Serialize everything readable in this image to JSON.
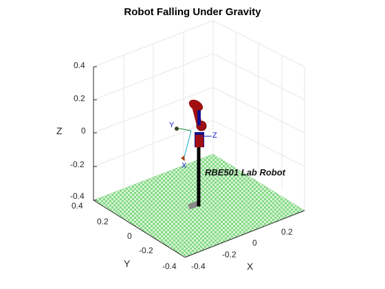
{
  "figure": {
    "title": "Robot Falling Under Gravity",
    "robot_label": "RBE501 Lab Robot",
    "axes": {
      "xlabel": "X",
      "ylabel": "Y",
      "zlabel": "Z",
      "x_ticks": [
        "-0.4",
        "-0.2",
        "0",
        "0.2"
      ],
      "y_ticks": [
        "0.4",
        "0.2",
        "0",
        "-0.2",
        "-0.4"
      ],
      "z_ticks": [
        "0.4",
        "0.2",
        "0",
        "-0.2",
        "-0.4"
      ],
      "grid": true
    },
    "frame_labels": {
      "x": "X",
      "y": "Y",
      "z": "Z"
    },
    "colors": {
      "floor_green": "#86d986",
      "floor_light": "#d6f5d6",
      "link_red": "#a01010",
      "joint_blue": "#10108a",
      "grid": "#e6e6e6",
      "axis": "#262626"
    }
  }
}
